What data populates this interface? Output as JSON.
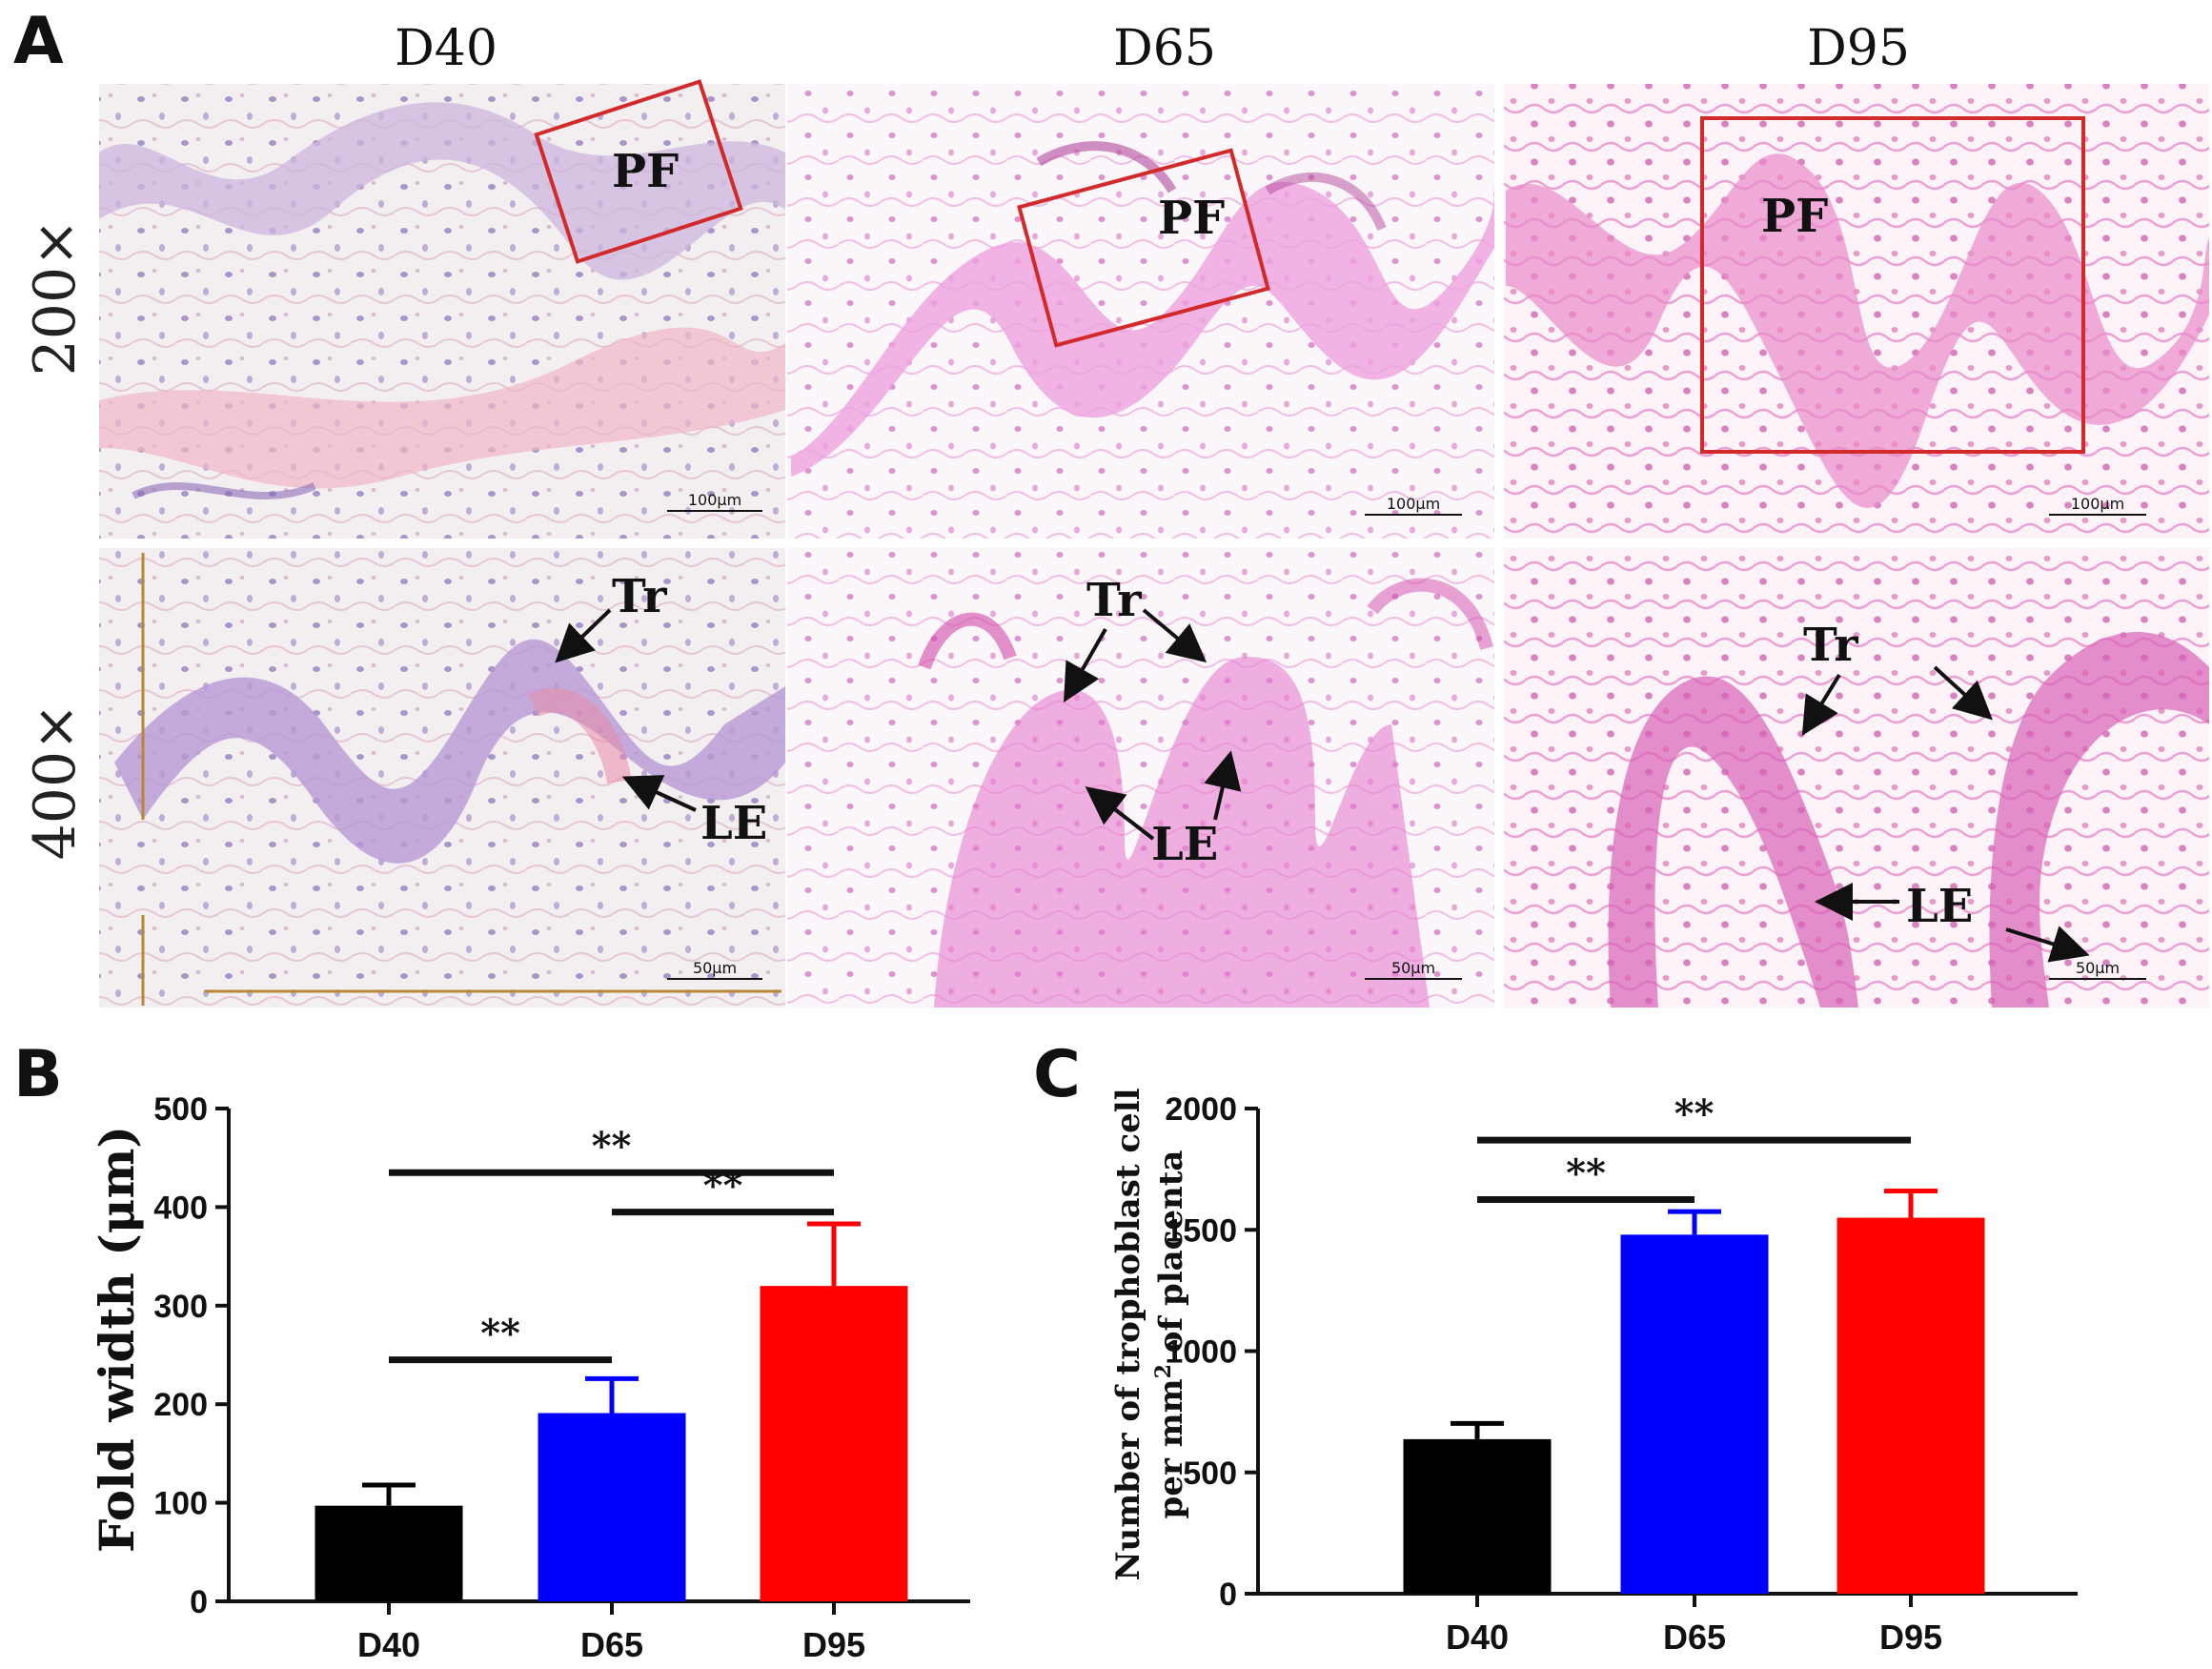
{
  "panel_a": {
    "letter": "A",
    "columns": [
      "D40",
      "D65",
      "D95"
    ],
    "rows": [
      "200×",
      "400×"
    ],
    "label_pf": "PF",
    "label_tr": "Tr",
    "label_le": "LE",
    "scale_200": "100μm",
    "scale_400": "50μm",
    "colors": {
      "tissue_bg": "#f7f3f2",
      "d40_stain": "#a98ac9",
      "d65_stain": "#e58fd6",
      "d95_stain": "#e16ec2",
      "roi_box": "#d22a2a",
      "guide_line": "#b5893a"
    },
    "icons": [
      "arrow-icon"
    ]
  },
  "chart_data": [
    {
      "panel": "B",
      "type": "bar",
      "categories": [
        "D40",
        "D65",
        "D95"
      ],
      "values": [
        97,
        191,
        320
      ],
      "errors": [
        21,
        35,
        63
      ],
      "colors": [
        "#000000",
        "#0000ff",
        "#ff0000"
      ],
      "ylabel": "Fold width (μm)",
      "ylim": [
        0,
        500
      ],
      "yticks": [
        0,
        100,
        200,
        300,
        400,
        500
      ],
      "significance": [
        {
          "from": "D40",
          "to": "D65",
          "label": "**",
          "y": 245
        },
        {
          "from": "D40",
          "to": "D95",
          "label": "**",
          "y": 435
        },
        {
          "from": "D65",
          "to": "D95",
          "label": "**",
          "y": 395
        }
      ]
    },
    {
      "panel": "C",
      "type": "bar",
      "categories": [
        "D40",
        "D65",
        "D95"
      ],
      "values": [
        637,
        1480,
        1550
      ],
      "errors": [
        65,
        95,
        110
      ],
      "colors": [
        "#000000",
        "#0000ff",
        "#ff0000"
      ],
      "ylabel_line1": "Number of trophoblast cell",
      "ylabel_line2": "per mm",
      "ylabel_sup": "2",
      "ylabel_line2_end": " of placenta",
      "ylim": [
        0,
        2000
      ],
      "yticks": [
        0,
        500,
        1000,
        1500,
        2000
      ],
      "significance": [
        {
          "from": "D40",
          "to": "D65",
          "label": "**",
          "y": 1625
        },
        {
          "from": "D40",
          "to": "D95",
          "label": "**",
          "y": 1870
        }
      ]
    }
  ],
  "panel_b_letter": "B",
  "panel_c_letter": "C"
}
